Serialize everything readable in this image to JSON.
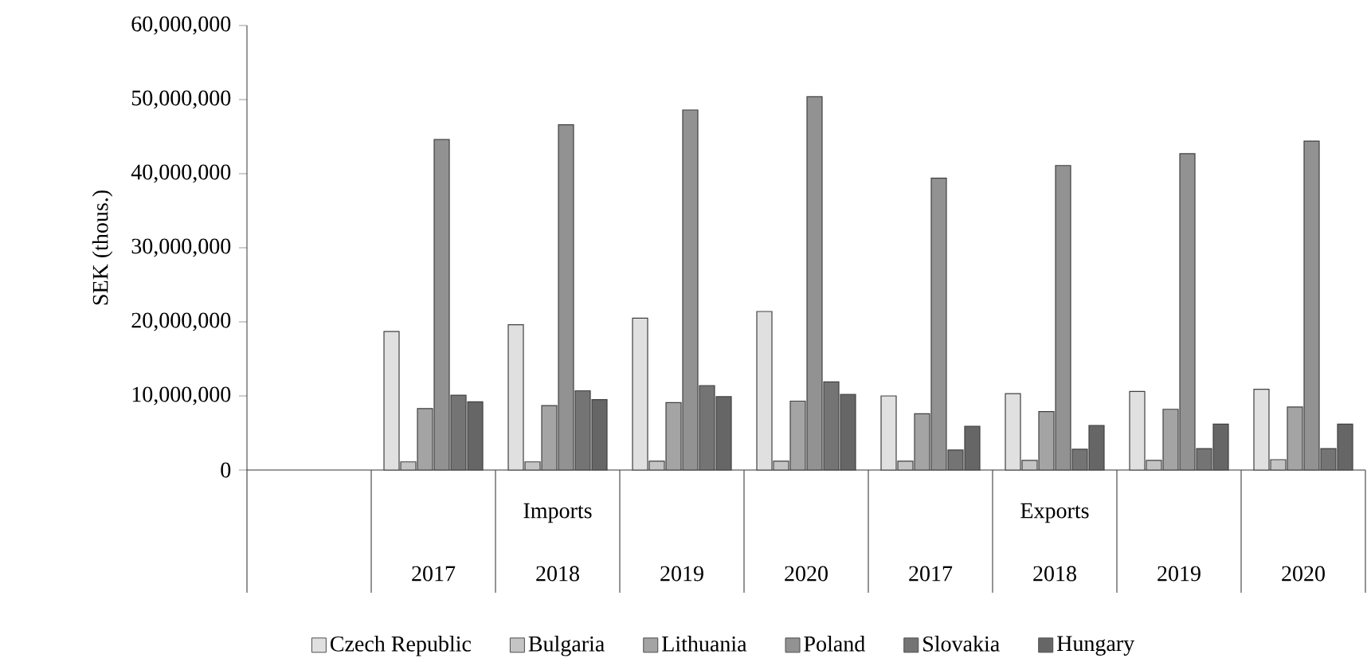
{
  "chart_data": {
    "type": "bar",
    "ylabel": "SEK (thous.)",
    "categories": [
      null,
      "2017",
      "2018",
      "2019",
      "2020",
      "2017",
      "2018",
      "2019",
      "2020"
    ],
    "annotations": [
      "Imports",
      "Exports"
    ],
    "ylim": [
      0,
      60000000
    ],
    "yticks": [
      {
        "value": 0,
        "label": "0"
      },
      {
        "value": 10000000,
        "label": "10,000,000"
      },
      {
        "value": 20000000,
        "label": "20,000,000"
      },
      {
        "value": 30000000,
        "label": "30,000,000"
      },
      {
        "value": 40000000,
        "label": "40,000,000"
      },
      {
        "value": 50000000,
        "label": "50,000,000"
      },
      {
        "value": 60000000,
        "label": "60,000,000"
      }
    ],
    "legend": "bottom",
    "series": [
      {
        "name": "Czech Republic",
        "color": "#e0e0e0",
        "values": [
          null,
          18700000,
          19600000,
          20500000,
          21400000,
          10000000,
          10300000,
          10600000,
          10900000
        ]
      },
      {
        "name": "Bulgaria",
        "color": "#c4c4c4",
        "values": [
          null,
          1100000,
          1100000,
          1200000,
          1200000,
          1200000,
          1300000,
          1300000,
          1400000
        ]
      },
      {
        "name": "Lithuania",
        "color": "#a4a4a4",
        "values": [
          null,
          8300000,
          8700000,
          9100000,
          9300000,
          7600000,
          7900000,
          8200000,
          8500000
        ]
      },
      {
        "name": "Poland",
        "color": "#929292",
        "values": [
          null,
          44600000,
          46600000,
          48600000,
          50400000,
          39400000,
          41100000,
          42700000,
          44400000
        ]
      },
      {
        "name": "Slovakia",
        "color": "#747474",
        "values": [
          null,
          10100000,
          10700000,
          11400000,
          11900000,
          2700000,
          2800000,
          2900000,
          2900000
        ]
      },
      {
        "name": "Hungary",
        "color": "#666666",
        "values": [
          null,
          9200000,
          9500000,
          9900000,
          10200000,
          5900000,
          6000000,
          6200000,
          6200000
        ]
      }
    ]
  }
}
